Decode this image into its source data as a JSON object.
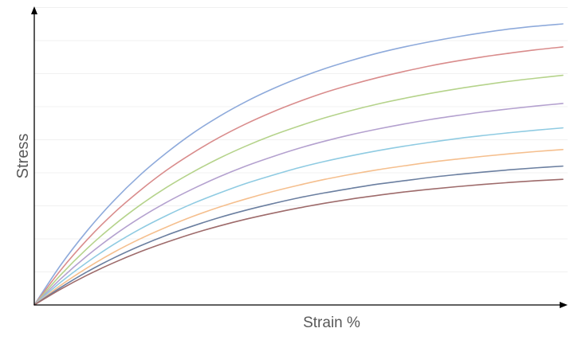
{
  "chart_data": {
    "type": "line",
    "title": "",
    "xlabel": "Strain %",
    "ylabel": "Stress",
    "xlim": [
      0,
      100
    ],
    "ylim": [
      0,
      100
    ],
    "grid": true,
    "legend": "none",
    "x": [
      0,
      5,
      10,
      15,
      20,
      25,
      30,
      35,
      40,
      45,
      50,
      55,
      60,
      65,
      70,
      75,
      80,
      85,
      90,
      95,
      100
    ],
    "series": [
      {
        "color": "#8eaadb",
        "values": [
          0,
          14.2,
          26.4,
          37.0,
          46.2,
          54.1,
          61.1,
          67.1,
          72.3,
          76.8,
          80.7,
          84.1,
          87.0,
          89.6,
          91.8,
          93.7,
          95.4,
          96.9,
          98.2,
          99.2,
          100.0
        ]
      },
      {
        "color": "#d98c8c",
        "values": [
          0,
          12.4,
          23.2,
          32.6,
          40.7,
          47.9,
          54.1,
          59.6,
          64.4,
          68.6,
          72.3,
          75.6,
          78.4,
          80.9,
          83.1,
          85.1,
          86.8,
          88.3,
          89.6,
          90.8,
          91.8
        ]
      },
      {
        "color": "#b5d38b",
        "values": [
          0,
          10.7,
          20.1,
          28.3,
          35.5,
          41.8,
          47.3,
          52.2,
          56.5,
          60.3,
          63.6,
          66.6,
          69.2,
          71.5,
          73.5,
          75.3,
          76.9,
          78.3,
          79.6,
          80.7,
          81.7
        ]
      },
      {
        "color": "#b4a1cf",
        "values": [
          0,
          9.3,
          17.5,
          24.7,
          31.0,
          36.5,
          41.3,
          45.6,
          49.4,
          52.7,
          55.7,
          58.3,
          60.6,
          62.6,
          64.4,
          66.0,
          67.4,
          68.7,
          69.8,
          70.8,
          71.7
        ]
      },
      {
        "color": "#8fcbe2",
        "values": [
          0,
          8.1,
          15.2,
          21.5,
          27.0,
          31.8,
          36.1,
          39.8,
          43.2,
          46.1,
          48.8,
          51.1,
          53.1,
          54.9,
          56.5,
          57.9,
          59.2,
          60.3,
          61.3,
          62.2,
          63.0
        ]
      },
      {
        "color": "#f5bf8e",
        "values": [
          0,
          7.0,
          13.2,
          18.7,
          23.5,
          27.7,
          31.5,
          34.8,
          37.7,
          40.3,
          42.6,
          44.7,
          46.5,
          48.1,
          49.5,
          50.8,
          51.9,
          52.9,
          53.8,
          54.6,
          55.3
        ]
      },
      {
        "color": "#6b7fa0",
        "values": [
          0,
          6.2,
          11.8,
          16.7,
          21.0,
          24.8,
          28.1,
          31.1,
          33.7,
          36.0,
          38.1,
          39.9,
          41.5,
          43.0,
          44.2,
          45.4,
          46.4,
          47.3,
          48.1,
          48.8,
          49.4
        ]
      },
      {
        "color": "#9e6b6b",
        "values": [
          0,
          5.6,
          10.6,
          15.0,
          18.9,
          22.3,
          25.4,
          28.1,
          30.5,
          32.6,
          34.5,
          36.2,
          37.7,
          39.0,
          40.2,
          41.2,
          42.1,
          42.9,
          43.6,
          44.2,
          44.7
        ]
      }
    ]
  }
}
